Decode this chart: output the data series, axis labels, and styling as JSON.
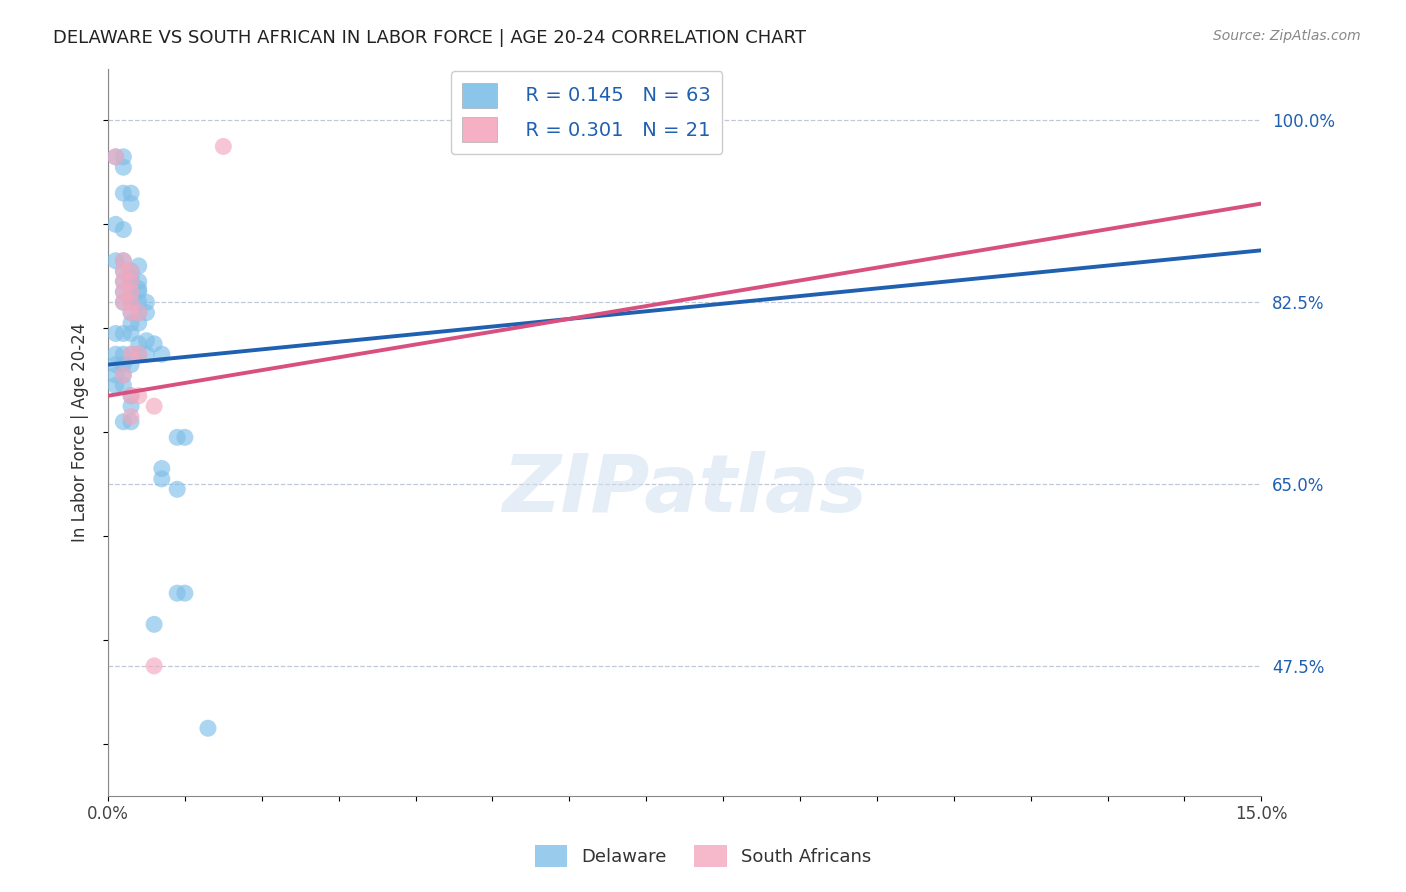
{
  "title": "DELAWARE VS SOUTH AFRICAN IN LABOR FORCE | AGE 20-24 CORRELATION CHART",
  "source_text": "Source: ZipAtlas.com",
  "ylabel": "In Labor Force | Age 20-24",
  "xlim": [
    0.0,
    0.15
  ],
  "ylim": [
    0.35,
    1.05
  ],
  "ytick_labels_right": [
    "100.0%",
    "82.5%",
    "65.0%",
    "47.5%"
  ],
  "ytick_positions_right": [
    1.0,
    0.825,
    0.65,
    0.475
  ],
  "watermark": "ZIPatlas",
  "legend_r1": "R = 0.145",
  "legend_n1": "N = 63",
  "legend_r2": "R = 0.301",
  "legend_n2": "N = 21",
  "blue_color": "#7fbfe8",
  "pink_color": "#f4a8be",
  "line_blue": "#2060b0",
  "line_pink": "#d85080",
  "legend_text_color": "#2060b0",
  "title_color": "#222222",
  "right_axis_color": "#2060b0",
  "grid_color": "#c0c8d8",
  "blue_scatter": [
    [
      0.001,
      0.965
    ],
    [
      0.002,
      0.965
    ],
    [
      0.002,
      0.955
    ],
    [
      0.002,
      0.93
    ],
    [
      0.003,
      0.93
    ],
    [
      0.003,
      0.92
    ],
    [
      0.001,
      0.9
    ],
    [
      0.002,
      0.895
    ],
    [
      0.001,
      0.865
    ],
    [
      0.002,
      0.865
    ],
    [
      0.002,
      0.855
    ],
    [
      0.003,
      0.855
    ],
    [
      0.003,
      0.848
    ],
    [
      0.004,
      0.86
    ],
    [
      0.002,
      0.845
    ],
    [
      0.003,
      0.845
    ],
    [
      0.004,
      0.845
    ],
    [
      0.004,
      0.838
    ],
    [
      0.002,
      0.835
    ],
    [
      0.003,
      0.835
    ],
    [
      0.003,
      0.828
    ],
    [
      0.004,
      0.835
    ],
    [
      0.002,
      0.825
    ],
    [
      0.003,
      0.825
    ],
    [
      0.004,
      0.825
    ],
    [
      0.005,
      0.825
    ],
    [
      0.003,
      0.815
    ],
    [
      0.004,
      0.815
    ],
    [
      0.005,
      0.815
    ],
    [
      0.003,
      0.805
    ],
    [
      0.004,
      0.805
    ],
    [
      0.001,
      0.795
    ],
    [
      0.002,
      0.795
    ],
    [
      0.003,
      0.795
    ],
    [
      0.004,
      0.785
    ],
    [
      0.005,
      0.788
    ],
    [
      0.006,
      0.785
    ],
    [
      0.001,
      0.775
    ],
    [
      0.002,
      0.775
    ],
    [
      0.003,
      0.775
    ],
    [
      0.004,
      0.775
    ],
    [
      0.005,
      0.775
    ],
    [
      0.001,
      0.765
    ],
    [
      0.002,
      0.765
    ],
    [
      0.003,
      0.765
    ],
    [
      0.001,
      0.755
    ],
    [
      0.002,
      0.755
    ],
    [
      0.001,
      0.745
    ],
    [
      0.002,
      0.745
    ],
    [
      0.003,
      0.735
    ],
    [
      0.003,
      0.725
    ],
    [
      0.002,
      0.71
    ],
    [
      0.003,
      0.71
    ],
    [
      0.007,
      0.775
    ],
    [
      0.007,
      0.665
    ],
    [
      0.007,
      0.655
    ],
    [
      0.009,
      0.695
    ],
    [
      0.01,
      0.695
    ],
    [
      0.009,
      0.645
    ],
    [
      0.009,
      0.545
    ],
    [
      0.01,
      0.545
    ],
    [
      0.006,
      0.515
    ],
    [
      0.013,
      0.415
    ]
  ],
  "pink_scatter": [
    [
      0.001,
      0.965
    ],
    [
      0.015,
      0.975
    ],
    [
      0.002,
      0.865
    ],
    [
      0.002,
      0.855
    ],
    [
      0.002,
      0.845
    ],
    [
      0.003,
      0.855
    ],
    [
      0.003,
      0.845
    ],
    [
      0.003,
      0.835
    ],
    [
      0.002,
      0.835
    ],
    [
      0.002,
      0.825
    ],
    [
      0.003,
      0.825
    ],
    [
      0.003,
      0.815
    ],
    [
      0.004,
      0.815
    ],
    [
      0.003,
      0.775
    ],
    [
      0.004,
      0.775
    ],
    [
      0.002,
      0.755
    ],
    [
      0.003,
      0.735
    ],
    [
      0.004,
      0.735
    ],
    [
      0.003,
      0.715
    ],
    [
      0.006,
      0.725
    ],
    [
      0.006,
      0.475
    ]
  ],
  "blue_line_x": [
    0.0,
    0.15
  ],
  "blue_line_y": [
    0.765,
    0.875
  ],
  "pink_line_x": [
    0.0,
    0.15
  ],
  "pink_line_y": [
    0.735,
    0.92
  ]
}
